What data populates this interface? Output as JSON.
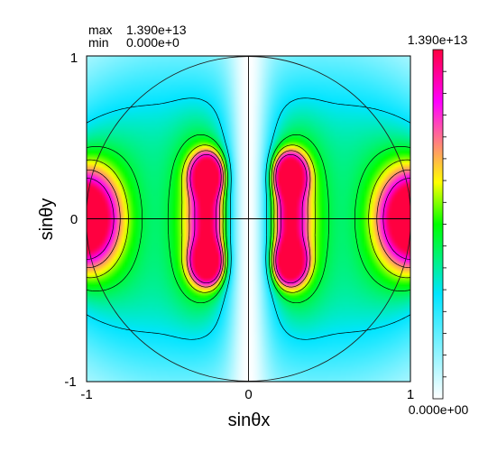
{
  "chart_data": {
    "type": "heatmap",
    "stats": {
      "max_label": "max",
      "max_value": "1.390e+13",
      "min_label": "min",
      "min_value": "0.000e+0"
    },
    "xlabel": "sinθx",
    "ylabel": "sinθy",
    "xlim": [
      -1,
      1
    ],
    "ylim": [
      -1,
      1
    ],
    "x_ticks": [
      "-1",
      "0",
      "1"
    ],
    "y_ticks": [
      "1",
      "0",
      "-1"
    ],
    "colorbar": {
      "max_label": "1.390e+13",
      "min_label": "0.000e+00",
      "max": 13900000000000.0,
      "min": 0,
      "colors": [
        "#ffffff",
        "#00e5ff",
        "#00ff00",
        "#ffff00",
        "#ff00ff",
        "#ff0040"
      ]
    },
    "unit_circle": true,
    "crosshair_axes": true,
    "contour_lines": true
  }
}
